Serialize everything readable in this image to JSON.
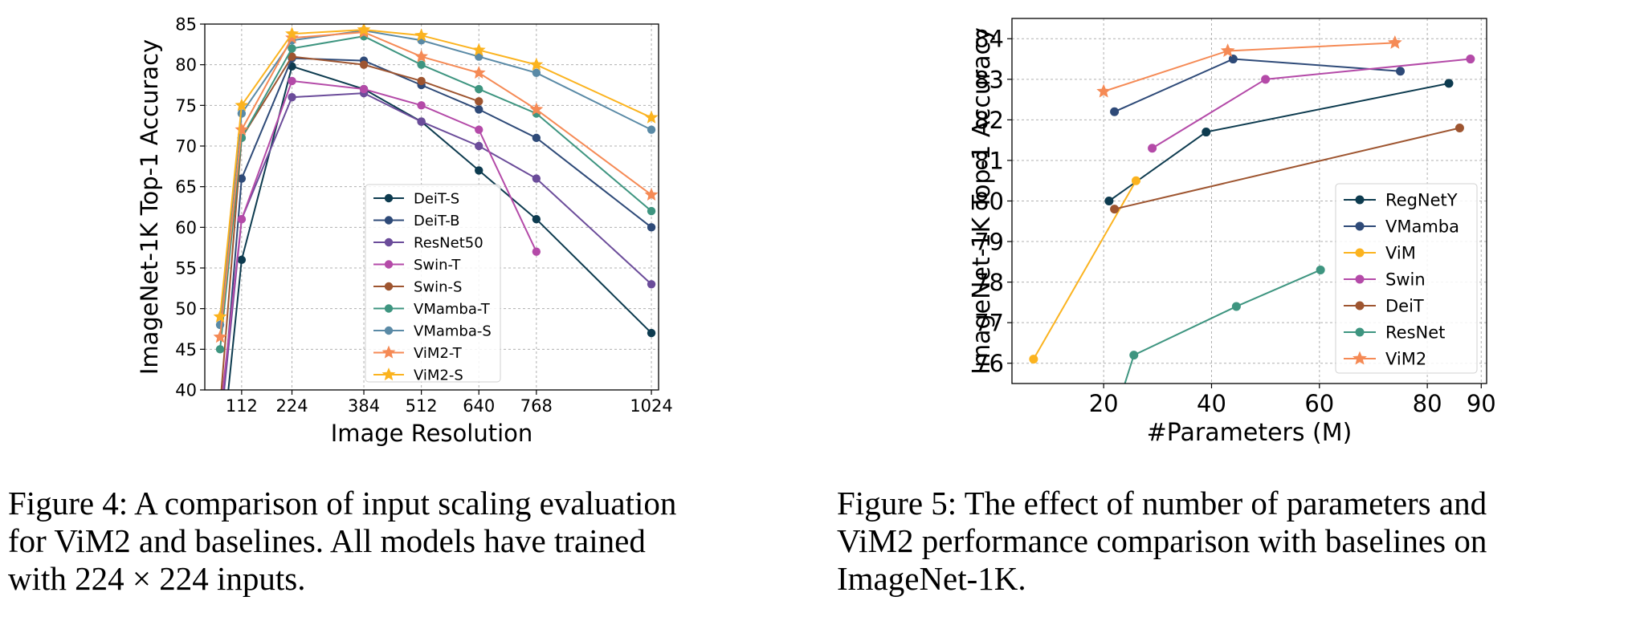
{
  "captions": {
    "fig4": {
      "lines": [
        "Figure 4: A comparison of input scaling evaluation",
        "for ViM2 and baselines. All models have trained",
        "with 224 × 224 inputs."
      ]
    },
    "fig5": {
      "lines": [
        "Figure 5: The effect of number of parameters and",
        "ViM2 performance comparison with baselines on",
        "ImageNet-1K."
      ]
    }
  },
  "chart_data": [
    {
      "type": "line",
      "xlabel": "Image Resolution",
      "ylabel": "ImageNet-1K Top-1 Accuracy",
      "xlim": [
        30,
        1040
      ],
      "ylim": [
        40,
        85
      ],
      "xticks": [
        112,
        224,
        384,
        512,
        640,
        768,
        1024
      ],
      "yticks": [
        40,
        45,
        50,
        55,
        60,
        65,
        70,
        75,
        80,
        85
      ],
      "grid": true,
      "legend_position": "lower-right",
      "x": [
        64,
        112,
        224,
        384,
        512,
        640,
        768,
        1024
      ],
      "series": [
        {
          "name": "DeiT-S",
          "color": "#0d3b4f",
          "marker": "circle",
          "values": [
            30,
            56,
            79.8,
            77,
            73,
            67,
            61,
            47
          ]
        },
        {
          "name": "DeiT-B",
          "color": "#2e4a78",
          "marker": "circle",
          "values": [
            34,
            66,
            80.8,
            80.5,
            77.5,
            74.5,
            71,
            60
          ]
        },
        {
          "name": "ResNet50",
          "color": "#6b4c9a",
          "marker": "circle",
          "values": [
            35,
            61,
            76,
            76.5,
            73,
            70,
            66,
            53
          ]
        },
        {
          "name": "Swin-T",
          "color": "#b44aa8",
          "marker": "circle",
          "values": [
            37,
            61,
            78,
            77,
            75,
            72,
            57,
            null
          ]
        },
        {
          "name": "Swin-S",
          "color": "#9e5530",
          "marker": "circle",
          "values": [
            38,
            71,
            81,
            80,
            78,
            75.5,
            null,
            null
          ]
        },
        {
          "name": "VMamba-T",
          "color": "#3e9580",
          "marker": "circle",
          "values": [
            45,
            71,
            82,
            83.5,
            80,
            77,
            74,
            62
          ]
        },
        {
          "name": "VMamba-S",
          "color": "#5a8aa6",
          "marker": "circle",
          "values": [
            48,
            74,
            83,
            84.2,
            83,
            81,
            79,
            72
          ]
        },
        {
          "name": "ViM2-T",
          "color": "#f58a55",
          "marker": "star",
          "values": [
            46.5,
            72,
            83.3,
            84,
            81,
            79,
            74.5,
            64
          ]
        },
        {
          "name": "ViM2-S",
          "color": "#fbb31f",
          "marker": "star",
          "values": [
            49,
            75,
            83.8,
            84.3,
            83.6,
            81.8,
            80,
            73.5
          ]
        }
      ]
    },
    {
      "type": "line",
      "xlabel": "#Parameters (M)",
      "ylabel": "ImageNet-1K Top-1 Accuracy",
      "xlim": [
        3,
        91
      ],
      "ylim": [
        75.5,
        84.5
      ],
      "xticks": [
        20,
        40,
        60,
        80,
        90
      ],
      "yticks": [
        76,
        77,
        78,
        79,
        80,
        81,
        82,
        83,
        84
      ],
      "grid": true,
      "legend_position": "lower-right",
      "series": [
        {
          "name": "RegNetY",
          "color": "#0d3b4f",
          "marker": "circle",
          "x": [
            21,
            39,
            84
          ],
          "values": [
            80,
            81.7,
            82.9
          ]
        },
        {
          "name": "VMamba",
          "color": "#2e4a78",
          "marker": "circle",
          "x": [
            22,
            44,
            75
          ],
          "values": [
            82.2,
            83.5,
            83.2
          ]
        },
        {
          "name": "ViM",
          "color": "#fbb31f",
          "marker": "circle",
          "x": [
            7,
            26
          ],
          "values": [
            76.1,
            80.5
          ]
        },
        {
          "name": "Swin",
          "color": "#b44aa8",
          "marker": "circle",
          "x": [
            29,
            50,
            88
          ],
          "values": [
            81.3,
            83,
            83.5
          ]
        },
        {
          "name": "DeiT",
          "color": "#9e5530",
          "marker": "circle",
          "x": [
            22,
            86
          ],
          "values": [
            79.8,
            81.8
          ]
        },
        {
          "name": "ResNet",
          "color": "#3e9580",
          "marker": "circle",
          "x": [
            12,
            25.6,
            44.6,
            60.2
          ],
          "values": [
            70.5,
            76.2,
            77.4,
            78.3
          ]
        },
        {
          "name": "ViM2",
          "color": "#f58a55",
          "marker": "star",
          "x": [
            20,
            43,
            74
          ],
          "values": [
            82.7,
            83.7,
            83.9
          ]
        }
      ]
    }
  ]
}
